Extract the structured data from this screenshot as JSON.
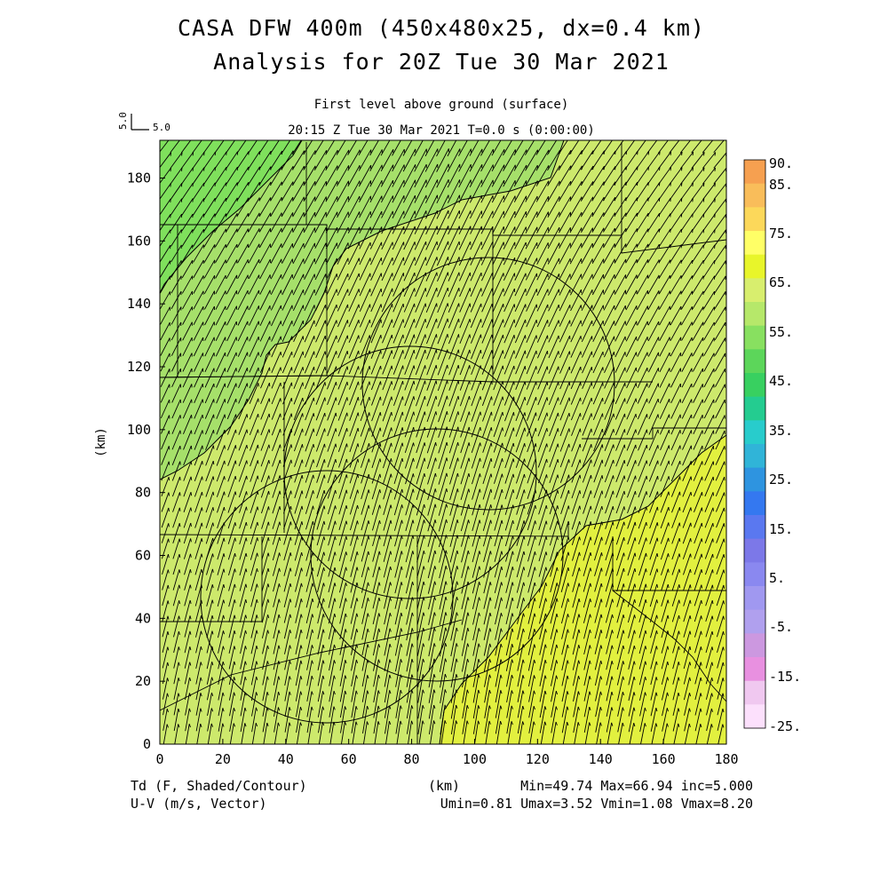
{
  "header": {
    "title_line1": "CASA DFW 400m (450x480x25, dx=0.4 km)",
    "title_line2": "Analysis for 20Z Tue 30 Mar 2021",
    "level": "First level above ground (surface)",
    "time": "20:15 Z Tue 30 Mar 2021    T=0.0 s (0:00:00)",
    "ref_vector_label_v": "5.0",
    "ref_vector_label_h": "5.0"
  },
  "footer": {
    "field_label": "Td (F, Shaded/Contour)",
    "vector_label": "U-V (m/s, Vector)",
    "xunit": "(km)",
    "stats": "Min=49.74 Max=66.94 inc=5.000",
    "wind_stats": "Umin=0.81 Umax=3.52 Vmin=1.08 Vmax=8.20"
  },
  "chart_data": {
    "type": "heatmap",
    "field": "Td",
    "xlabel": "",
    "ylabel": "(km)",
    "xlim": [
      0,
      180
    ],
    "ylim": [
      0,
      192
    ],
    "xticks": [
      0,
      20,
      40,
      60,
      80,
      100,
      120,
      140,
      160,
      180
    ],
    "yticks": [
      0,
      20,
      40,
      60,
      80,
      100,
      120,
      140,
      160,
      180
    ],
    "contour_levels": [
      50,
      55,
      60,
      65
    ],
    "field_regions": [
      {
        "label": "45-50",
        "color": "#7fe05c"
      },
      {
        "label": "50-55",
        "color": "#a6e06a"
      },
      {
        "label": "55-60",
        "color": "#cde96c"
      },
      {
        "label": "60-65",
        "color": "#e2f03f"
      }
    ],
    "colorbar": {
      "labels": [
        "90.",
        "85.",
        "75.",
        "65.",
        "55.",
        "45.",
        "35.",
        "25.",
        "15.",
        "5.",
        "-5.",
        "-15.",
        "-25."
      ],
      "colors": [
        "#f6a050",
        "#f9bd5a",
        "#fcd85a",
        "#ffff66",
        "#e8f52a",
        "#d8ee6e",
        "#b6e86a",
        "#88e060",
        "#5cd65a",
        "#38d060",
        "#24cc90",
        "#28cccc",
        "#30b4d8",
        "#2e94e0",
        "#3478f0",
        "#5a78f0",
        "#7c78e8",
        "#8a88f0",
        "#a098f0",
        "#b0a0ee",
        "#cc98e0",
        "#e890e0",
        "#f0c8f0",
        "#fce0fc"
      ]
    },
    "wind": {
      "umin": 0.81,
      "umax": 3.52,
      "vmin": 1.08,
      "vmax": 8.2,
      "reference_vector": 5.0
    }
  }
}
